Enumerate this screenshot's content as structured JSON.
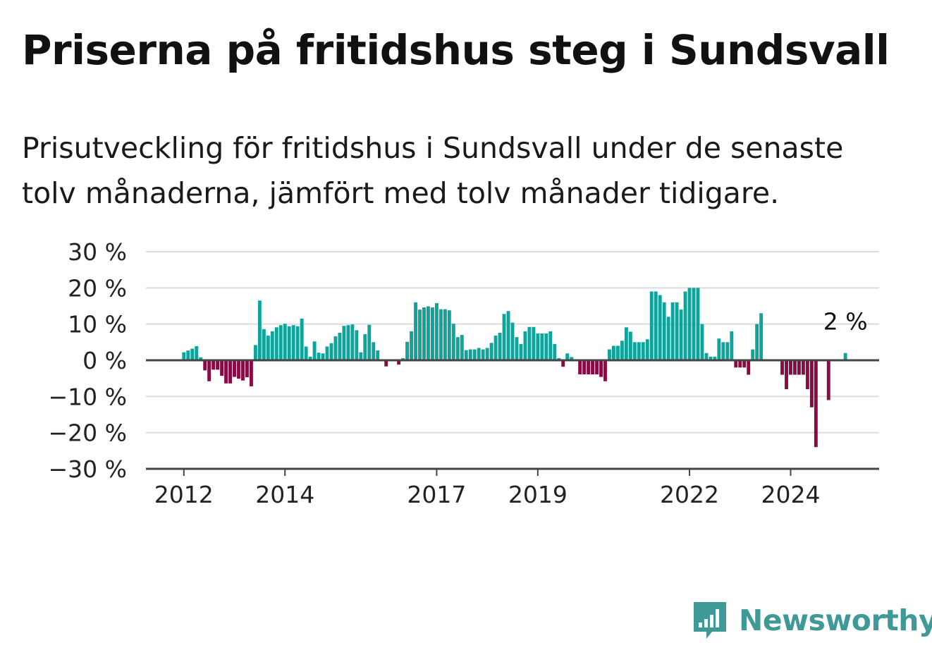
{
  "title": "Priserna på fritidshus steg i Sundsvall",
  "subtitle": "Prisutveckling för fritidshus i Sundsvall under de senaste tolv månaderna, jämfört med tolv månader tidigare.",
  "brand": {
    "name": "Newsworthy",
    "icon": "newsworthy-logo-icon",
    "color": "#3f9a97"
  },
  "colors": {
    "positive": "#0ea49b",
    "negative": "#8c0a43",
    "grid": "#dcdcdc",
    "axis": "#444444"
  },
  "annotation": {
    "text": "2 %"
  },
  "chart_data": {
    "type": "bar",
    "ylim": [
      -30,
      30
    ],
    "yticks": [
      30,
      20,
      10,
      0,
      -10,
      -20,
      -30
    ],
    "ytick_labels": [
      "30 %",
      "20 %",
      "10 %",
      "0 %",
      "−10 %",
      "−20 %",
      "−30 %"
    ],
    "x_start": [
      2011,
      4
    ],
    "x_end": [
      2025,
      10
    ],
    "xticks": [
      {
        "label": "2012",
        "year": 2012,
        "month": 1
      },
      {
        "label": "2014",
        "year": 2014,
        "month": 1
      },
      {
        "label": "2017",
        "year": 2017,
        "month": 1
      },
      {
        "label": "2019",
        "year": 2019,
        "month": 1
      },
      {
        "label": "2022",
        "year": 2022,
        "month": 1
      },
      {
        "label": "2024",
        "year": 2024,
        "month": 1
      }
    ],
    "grid": true,
    "legend": "none",
    "series": [
      {
        "start": [
          2012,
          1
        ],
        "values": [
          2.2,
          2.7,
          3.2,
          3.9,
          0.8,
          -2.8,
          -5.8,
          -2.6,
          -2.6,
          -4.3,
          -6.4,
          -6.4,
          -4.6,
          -5.1,
          -5.6,
          -4.7,
          -7.2,
          4.2,
          16.5,
          8.6,
          6.8,
          8.0,
          9.1,
          9.7,
          10.1,
          9.4,
          9.7,
          9.4,
          11.5,
          3.8,
          1.0,
          5.2,
          2.1,
          1.9,
          3.8,
          4.7,
          6.6,
          7.6,
          9.5,
          9.7,
          9.9,
          8.3,
          2.2,
          7.2,
          9.8,
          5.0,
          2.7,
          0,
          -1.7,
          0,
          0,
          -1.2,
          0.6,
          5.1,
          8.0,
          16.0,
          14.0,
          14.6,
          14.9,
          14.6,
          15.8,
          14.1,
          14.1,
          13.8,
          10.1,
          6.4,
          7.0,
          2.8,
          3.0,
          3.0,
          3.4,
          3.0,
          3.4,
          4.8,
          6.8,
          7.6,
          12.8,
          13.6,
          10.4,
          6.4,
          4.5,
          8.0,
          9.2,
          9.2,
          7.4,
          7.4,
          7.4,
          8.0,
          4.5,
          0.6,
          -1.8,
          1.9,
          0.9,
          0,
          -3.9,
          -3.9,
          -3.9,
          -3.9,
          -3.9,
          -4.6,
          -5.8,
          3.0,
          4.0,
          4.0,
          5.4,
          9.1,
          7.9,
          5.0,
          5.0,
          5.0,
          5.8,
          19.0,
          19.0,
          18.0,
          16.0,
          12.0,
          16.0,
          16.0,
          14.0,
          19.0,
          20.0,
          20.0,
          20.0,
          10.0,
          2.0,
          1.0,
          1.0,
          6.0,
          5.0,
          5.0,
          8.0,
          -2.0,
          -2.0,
          -2.0,
          -4.0,
          3.0,
          10.0,
          13.0,
          0,
          0,
          0,
          0,
          -4.0,
          -8.0,
          -4.0,
          -4.0,
          -4.0,
          -4.0,
          -8.0,
          -13.0,
          -24.0,
          0,
          0,
          -11.0,
          0,
          0,
          0,
          2.0
        ]
      }
    ]
  }
}
